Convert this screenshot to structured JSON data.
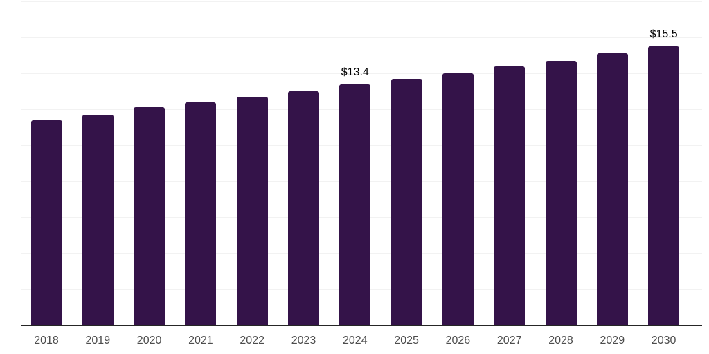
{
  "chart_data": {
    "type": "bar",
    "title": "",
    "xlabel": "",
    "ylabel": "",
    "categories": [
      "2018",
      "2019",
      "2020",
      "2021",
      "2022",
      "2023",
      "2024",
      "2025",
      "2026",
      "2027",
      "2028",
      "2029",
      "2030"
    ],
    "values": [
      11.4,
      11.7,
      12.1,
      12.4,
      12.7,
      13.0,
      13.4,
      13.7,
      14.0,
      14.4,
      14.7,
      15.1,
      15.5
    ],
    "data_labels": {
      "2024": "$13.4",
      "2030": "$15.5"
    },
    "ylim": [
      0,
      18
    ],
    "gridline_step": 2,
    "grid": "horizontal-only",
    "legend_position": "none",
    "y_axis_labels_visible": false,
    "colors": {
      "bar": "#341349",
      "gridline": "#f2f2f2",
      "axis_line": "#262626",
      "tick_label": "#4d4d4d",
      "data_label": "#000000",
      "background": "#ffffff"
    }
  }
}
